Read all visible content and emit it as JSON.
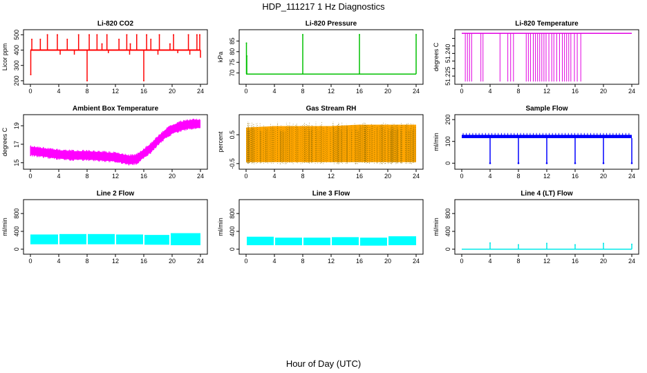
{
  "figure": {
    "title": "HDP_111217  1 Hz Diagnostics",
    "xlabel": "Hour of Day (UTC)"
  },
  "chart_data": [
    {
      "id": "co2",
      "type": "line",
      "title": "Li-820 CO2",
      "ylabel": "Licor ppm",
      "color": "#ff0000",
      "xlim": [
        0,
        24
      ],
      "ylim": [
        195,
        515
      ],
      "yticks": [
        200,
        300,
        400,
        500
      ],
      "xticks": [
        0,
        4,
        8,
        12,
        16,
        20,
        24
      ],
      "baseline": 400,
      "spikes": [
        [
          0.05,
          240
        ],
        [
          0.2,
          470
        ],
        [
          1.4,
          470
        ],
        [
          2.4,
          500
        ],
        [
          3.8,
          500
        ],
        [
          5.2,
          470
        ],
        [
          6.8,
          500
        ],
        [
          8.0,
          200
        ],
        [
          8.3,
          500
        ],
        [
          9.4,
          500
        ],
        [
          10.1,
          440
        ],
        [
          10.8,
          500
        ],
        [
          12.5,
          470
        ],
        [
          13.6,
          500
        ],
        [
          14.1,
          440
        ],
        [
          15.0,
          500
        ],
        [
          16.0,
          200
        ],
        [
          16.4,
          500
        ],
        [
          17.0,
          470
        ],
        [
          18.2,
          500
        ],
        [
          19.7,
          440
        ],
        [
          20.2,
          500
        ],
        [
          22.3,
          500
        ],
        [
          23.5,
          500
        ],
        [
          23.9,
          500
        ]
      ],
      "dips": [
        [
          4.2,
          370
        ],
        [
          6.2,
          370
        ],
        [
          11.0,
          380
        ],
        [
          14.0,
          370
        ],
        [
          18.0,
          370
        ],
        [
          20.8,
          380
        ],
        [
          22.5,
          370
        ],
        [
          24.0,
          350
        ]
      ]
    },
    {
      "id": "pressure",
      "type": "line",
      "title": "Li-820 Pressure",
      "ylabel": "kPa",
      "color": "#00c000",
      "xlim": [
        0,
        24
      ],
      "ylim": [
        66,
        89
      ],
      "yticks": [
        70,
        75,
        80,
        85
      ],
      "xticks": [
        0,
        4,
        8,
        12,
        16,
        20,
        24
      ],
      "baseline": 69.5,
      "spikes": [
        [
          0.05,
          84
        ],
        [
          0.1,
          78
        ],
        [
          8.0,
          88
        ],
        [
          16.0,
          88
        ],
        [
          24.0,
          88
        ]
      ]
    },
    {
      "id": "licor-temp",
      "type": "line",
      "title": "Li-820 Temperature",
      "ylabel": "degrees C",
      "color": "#e000e0",
      "xlim": [
        0,
        24
      ],
      "ylim": [
        51.2214,
        51.2539
      ],
      "yticks": [
        51.225,
        51.23,
        51.235,
        51.24,
        51.245,
        51.25
      ],
      "ytick_labels": [
        "51.225",
        "",
        "",
        "51.240",
        "",
        ""
      ],
      "xticks": [
        0,
        4,
        8,
        12,
        16,
        20,
        24
      ],
      "baseline": 51.2533,
      "drop_times": [
        0.5,
        0.8,
        1.1,
        1.4,
        2.7,
        3.0,
        5.4,
        6.5,
        6.9,
        7.3,
        9.1,
        9.4,
        9.7,
        10.1,
        10.4,
        10.7,
        11.0,
        11.3,
        11.6,
        11.9,
        12.3,
        12.7,
        13.0,
        13.4,
        13.8,
        14.2,
        14.5,
        14.8,
        15.1,
        15.4,
        15.9,
        16.3,
        16.8
      ],
      "drop_value": 51.2214
    },
    {
      "id": "ambient-temp",
      "type": "area",
      "title": "Ambient Box Temperature",
      "ylabel": "degrees C",
      "color": "#ff00ff",
      "xlim": [
        0,
        24
      ],
      "ylim": [
        14.6,
        19.9
      ],
      "yticks": [
        15,
        17,
        19
      ],
      "xticks": [
        0,
        4,
        8,
        12,
        16,
        20,
        24
      ],
      "x": [
        0,
        2,
        4,
        6,
        8,
        10,
        12,
        14,
        15,
        16,
        17,
        18,
        19,
        20,
        21,
        22,
        23,
        24
      ],
      "y": [
        16.3,
        16.1,
        15.9,
        15.8,
        15.8,
        15.7,
        15.6,
        15.3,
        15.4,
        16.0,
        16.6,
        17.4,
        18.1,
        18.6,
        18.9,
        19.1,
        19.2,
        19.2
      ],
      "band": 0.45
    },
    {
      "id": "gas-rh",
      "type": "area",
      "title": "Gas Stream RH",
      "ylabel": "percent",
      "color": "#ffa500",
      "edge_color": "#8a6a00",
      "xlim": [
        0,
        24
      ],
      "ylim": [
        -0.6,
        1.1
      ],
      "yticks": [
        -0.5,
        0.5
      ],
      "xticks": [
        0,
        4,
        8,
        12,
        16,
        20,
        24
      ],
      "x": [
        0,
        4,
        8,
        12,
        16,
        20,
        24
      ],
      "low": [
        -0.45,
        -0.45,
        -0.45,
        -0.45,
        -0.45,
        -0.45,
        -0.45
      ],
      "high": [
        0.75,
        0.8,
        0.8,
        0.8,
        0.85,
        0.85,
        0.85
      ]
    },
    {
      "id": "sample-flow",
      "type": "line",
      "title": "Sample Flow",
      "ylabel": "ml/min",
      "color": "#0000ff",
      "xlim": [
        0,
        24
      ],
      "ylim": [
        -15,
        210
      ],
      "yticks": [
        0,
        100,
        200
      ],
      "xticks": [
        0,
        4,
        8,
        12,
        16,
        20,
        24
      ],
      "baseline": 115,
      "upper": 130,
      "dip_times": [
        4.0,
        8.0,
        12.0,
        16.0,
        20.0,
        24.0
      ],
      "dip_value": 0
    },
    {
      "id": "line2-flow",
      "type": "area",
      "title": "Line 2 Flow",
      "ylabel": "ml/min",
      "color": "#00ffff",
      "xlim": [
        0,
        24
      ],
      "ylim": [
        -50,
        1050
      ],
      "yticks": [
        0,
        400,
        800
      ],
      "xticks": [
        0,
        4,
        8,
        12,
        16,
        20,
        24
      ],
      "segments": [
        [
          0,
          3.9,
          110,
          330
        ],
        [
          4.1,
          7.9,
          110,
          340
        ],
        [
          8.1,
          11.9,
          110,
          340
        ],
        [
          12.1,
          15.9,
          110,
          330
        ],
        [
          16.1,
          19.6,
          100,
          320
        ],
        [
          19.8,
          24,
          90,
          360
        ]
      ]
    },
    {
      "id": "line3-flow",
      "type": "area",
      "title": "Line 3 Flow",
      "ylabel": "ml/min",
      "color": "#00ffff",
      "xlim": [
        0,
        24
      ],
      "ylim": [
        -50,
        1050
      ],
      "yticks": [
        0,
        400,
        800
      ],
      "xticks": [
        0,
        4,
        8,
        12,
        16,
        20,
        24
      ],
      "segments": [
        [
          0.1,
          3.9,
          90,
          280
        ],
        [
          4.1,
          7.9,
          90,
          260
        ],
        [
          8.1,
          11.9,
          90,
          260
        ],
        [
          12.1,
          15.9,
          90,
          270
        ],
        [
          16.1,
          19.9,
          80,
          260
        ],
        [
          20.1,
          24,
          90,
          290
        ]
      ]
    },
    {
      "id": "line4-flow",
      "type": "line",
      "title": "Line 4 (LT) Flow",
      "ylabel": "ml/min",
      "color": "#00e8e8",
      "xlim": [
        0,
        24
      ],
      "ylim": [
        -50,
        1050
      ],
      "yticks": [
        0,
        400,
        800
      ],
      "xticks": [
        0,
        4,
        8,
        12,
        16,
        20,
        24
      ],
      "baseline": 0,
      "spikes": [
        [
          4.0,
          140
        ],
        [
          8.0,
          100
        ],
        [
          12.0,
          130
        ],
        [
          16.0,
          100
        ],
        [
          20.0,
          130
        ],
        [
          24.0,
          110
        ]
      ]
    }
  ]
}
